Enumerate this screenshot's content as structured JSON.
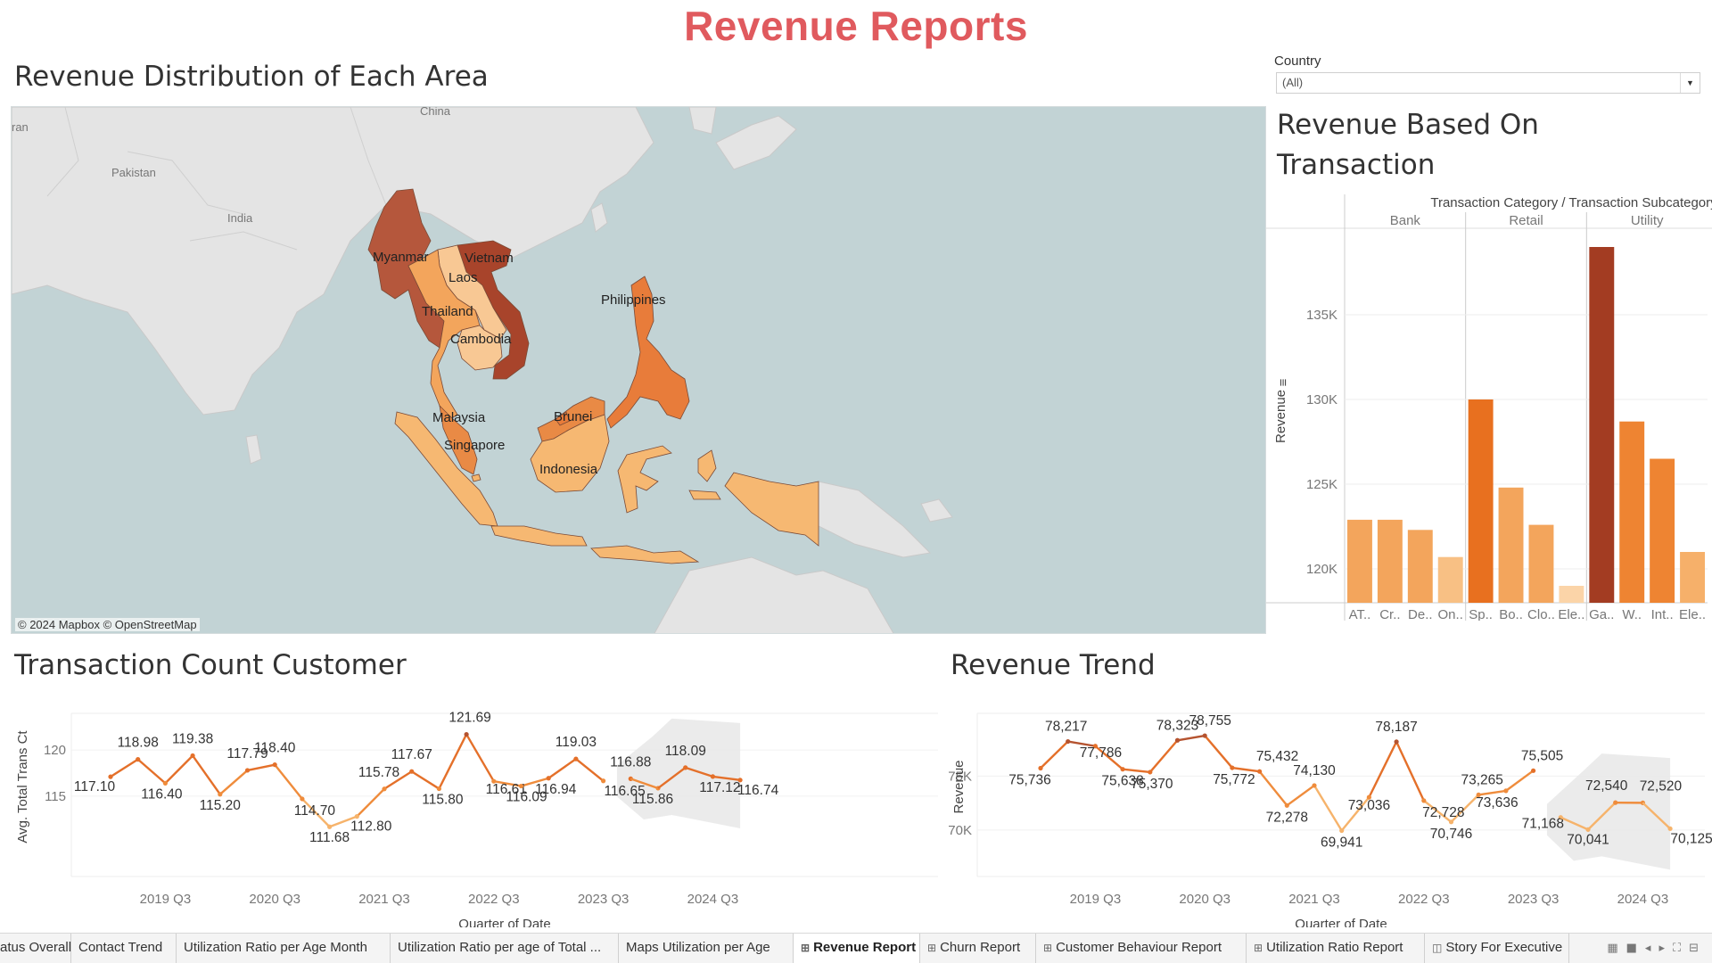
{
  "dashboard": {
    "title": "Revenue Reports"
  },
  "map": {
    "title": "Revenue Distribution of Each Area",
    "credit": "© 2024 Mapbox © OpenStreetMap",
    "background_labels": [
      "China",
      "Pakistan",
      "India",
      "ran"
    ],
    "countries": [
      {
        "name": "Myanmar",
        "color": "#b5573c"
      },
      {
        "name": "Vietnam",
        "color": "#a8442b"
      },
      {
        "name": "Laos",
        "color": "#f8c894"
      },
      {
        "name": "Thailand",
        "color": "#f3a55c"
      },
      {
        "name": "Cambodia",
        "color": "#f8c894"
      },
      {
        "name": "Philippines",
        "color": "#e87c3a"
      },
      {
        "name": "Malaysia",
        "color": "#e98a45"
      },
      {
        "name": "Singapore",
        "color": "#f5b56d"
      },
      {
        "name": "Brunei",
        "color": "#e87c3a"
      },
      {
        "name": "Indonesia",
        "color": "#f6b872"
      }
    ]
  },
  "filter": {
    "label": "Country",
    "value": "(All)"
  },
  "transaction_chart": {
    "title_line1": "Revenue Based On",
    "title_line2": "Transaction",
    "header": "Transaction Category  /  Transaction Subcategory",
    "y_axis_label": "Revenue",
    "groups": [
      "Bank",
      "Retail",
      "Utility"
    ],
    "y_ticks": [
      "135K",
      "130K",
      "125K",
      "120K"
    ],
    "x_tick_labels": [
      "AT..",
      "Cr..",
      "De..",
      "On..",
      "Sp..",
      "Bo..",
      "Clo..",
      "Ele..",
      "Ga..",
      "W..",
      "Int..",
      "Ele.."
    ]
  },
  "transaction_count": {
    "title": "Transaction Count Customer",
    "y_axis_label": "Avg. Total Trans Ct",
    "x_axis_label": "Quarter of Date",
    "y_ticks": [
      "120",
      "115"
    ],
    "x_ticks": [
      "2019 Q3",
      "2020 Q3",
      "2021 Q3",
      "2022 Q3",
      "2023 Q3",
      "2024 Q3"
    ]
  },
  "revenue_trend": {
    "title": "Revenue Trend",
    "y_axis_label": "Revenue",
    "x_axis_label": "Quarter of Date",
    "y_ticks": [
      "75K",
      "70K"
    ],
    "x_ticks": [
      "2019 Q3",
      "2020 Q3",
      "2021 Q3",
      "2022 Q3",
      "2023 Q3",
      "2024 Q3"
    ]
  },
  "chart_data": [
    {
      "type": "bar",
      "title": "Revenue Based On Transaction",
      "ylabel": "Revenue",
      "ylim": [
        118000,
        140000
      ],
      "categories": [
        "AT..",
        "Cr..",
        "De..",
        "On..",
        "Sp..",
        "Bo..",
        "Clo..",
        "Ele..",
        "Ga..",
        "W..",
        "Int..",
        "Ele.."
      ],
      "groups": [
        "Bank",
        "Bank",
        "Bank",
        "Bank",
        "Retail",
        "Retail",
        "Retail",
        "Retail",
        "Utility",
        "Utility",
        "Utility",
        "Utility"
      ],
      "values": [
        122900,
        122900,
        122300,
        120700,
        130000,
        124800,
        122600,
        119000,
        139000,
        128700,
        126500,
        121000
      ],
      "colors": [
        "#f3a55c",
        "#f3a55c",
        "#f3a55c",
        "#f8c084",
        "#e8701f",
        "#f3a55c",
        "#f3a55c",
        "#fbd4a8",
        "#a33c22",
        "#ee8432",
        "#ee8432",
        "#f6b06a"
      ]
    },
    {
      "type": "line",
      "title": "Transaction Count Customer",
      "xlabel": "Quarter of Date",
      "ylabel": "Avg. Total Trans Ct",
      "ylim": [
        109,
        123
      ],
      "x_ticks": [
        "2019 Q3",
        "2020 Q3",
        "2021 Q3",
        "2022 Q3",
        "2023 Q3",
        "2024 Q3"
      ],
      "values": [
        117.1,
        118.98,
        116.4,
        119.38,
        115.2,
        117.79,
        118.4,
        114.7,
        111.68,
        112.8,
        115.78,
        117.67,
        115.8,
        121.69,
        116.61,
        116.09,
        116.94,
        119.03,
        116.65
      ],
      "value_labels": [
        "117.10",
        "118.98",
        "116.40",
        "119.38",
        "115.20",
        "117.79",
        "118.40",
        "114.70",
        "111.68",
        "112.80",
        "115.78",
        "117.67",
        "115.80",
        "121.69",
        "116.61",
        "116.09",
        "116.94",
        "119.03",
        "116.65"
      ],
      "forecast": [
        116.88,
        115.86,
        118.09,
        117.12,
        116.74
      ],
      "forecast_labels": [
        "116.88",
        "115.86",
        "118.09",
        "117.12",
        "116.74"
      ]
    },
    {
      "type": "line",
      "title": "Revenue Trend",
      "xlabel": "Quarter of Date",
      "ylabel": "Revenue",
      "ylim": [
        68000,
        80000
      ],
      "x_ticks": [
        "2019 Q3",
        "2020 Q3",
        "2021 Q3",
        "2022 Q3",
        "2023 Q3",
        "2024 Q3"
      ],
      "values": [
        75736,
        78217,
        77786,
        75638,
        75370,
        78323,
        78755,
        75772,
        75432,
        72278,
        74130,
        69941,
        73036,
        78187,
        72728,
        70746,
        73265,
        73636,
        75505
      ],
      "value_labels": [
        "75,736",
        "78,217",
        "77,786",
        "75,638",
        "75,370",
        "78,323",
        "78,755",
        "75,772",
        "75,432",
        "72,278",
        "74,130",
        "69,941",
        "73,036",
        "78,187",
        "72,728",
        "70,746",
        "73,265",
        "73,636",
        "75,505"
      ],
      "forecast": [
        71168,
        70041,
        72540,
        72520,
        70125
      ],
      "forecast_labels": [
        "71,168",
        "70,041",
        "72,540",
        "72,520",
        "70,125"
      ]
    }
  ],
  "tabs": [
    {
      "label": "atus Overall",
      "icon": ""
    },
    {
      "label": "Contact Trend",
      "icon": ""
    },
    {
      "label": "Utilization Ratio per Age Month",
      "icon": ""
    },
    {
      "label": "Utilization Ratio per age of Total ...",
      "icon": ""
    },
    {
      "label": "Maps Utilization per Age",
      "icon": ""
    },
    {
      "label": "Revenue Report",
      "icon": "⊞"
    },
    {
      "label": "Churn Report",
      "icon": "⊞"
    },
    {
      "label": "Customer Behaviour Report",
      "icon": "⊞"
    },
    {
      "label": "Utilization Ratio Report",
      "icon": "⊞"
    },
    {
      "label": "Story For Executive",
      "icon": "◫"
    }
  ],
  "tab_controls": [
    "▦",
    "■",
    "◂",
    "▸",
    "⛶",
    "⊟"
  ]
}
